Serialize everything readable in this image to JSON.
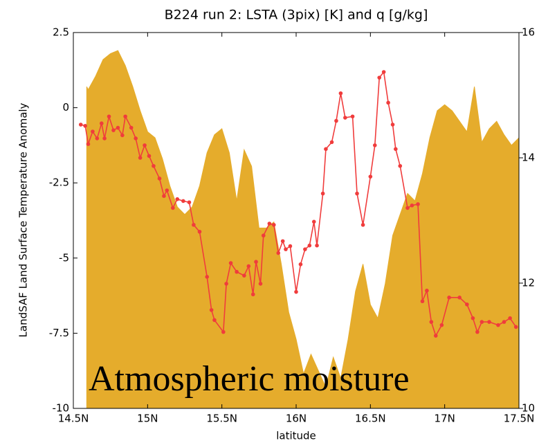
{
  "chart_data": {
    "type": "combo",
    "title": "B224 run 2: LSTA (3pix) [K] and q [g/kg]",
    "xlabel": "latitude",
    "ylabel": "LandSAF Land Surface Temperature Anomaly",
    "annotation": "Atmospheric moisture",
    "xlim": [
      14.5,
      17.5
    ],
    "xticks": [
      {
        "value": 14.5,
        "label": "14.5N"
      },
      {
        "value": 15,
        "label": "15N"
      },
      {
        "value": 15.5,
        "label": "15.5N"
      },
      {
        "value": 16,
        "label": "16N"
      },
      {
        "value": 16.5,
        "label": "16.5N"
      },
      {
        "value": 17,
        "label": "17N"
      },
      {
        "value": 17.5,
        "label": "17.5N"
      }
    ],
    "ylim": [
      -10,
      2.5
    ],
    "yticks": [
      -10,
      -7.5,
      -5,
      -2.5,
      0,
      2.5
    ],
    "y2lim": [
      10,
      16
    ],
    "y2ticks": [
      10,
      12,
      14,
      16
    ],
    "series": [
      {
        "type": "area",
        "color": "#e5ac2c",
        "x": [
          14.59,
          14.6,
          14.65,
          14.7,
          14.75,
          14.8,
          14.85,
          14.9,
          14.95,
          15.0,
          15.05,
          15.1,
          15.15,
          15.2,
          15.25,
          15.3,
          15.35,
          15.4,
          15.45,
          15.5,
          15.55,
          15.6,
          15.65,
          15.7,
          15.75,
          15.8,
          15.85,
          15.9,
          15.95,
          16.0,
          16.05,
          16.1,
          16.15,
          16.2,
          16.25,
          16.3,
          16.35,
          16.4,
          16.45,
          16.5,
          16.55,
          16.6,
          16.65,
          16.7,
          16.75,
          16.8,
          16.85,
          16.9,
          16.95,
          17.0,
          17.05,
          17.1,
          17.15,
          17.2,
          17.25,
          17.3,
          17.35,
          17.4,
          17.45,
          17.5
        ],
        "values": [
          0.7,
          0.6,
          1.05,
          1.6,
          1.8,
          1.9,
          1.4,
          0.7,
          -0.1,
          -0.8,
          -1.0,
          -1.7,
          -2.6,
          -3.3,
          -3.55,
          -3.3,
          -2.6,
          -1.5,
          -0.9,
          -0.7,
          -1.5,
          -3.1,
          -1.4,
          -1.95,
          -4.0,
          -4.0,
          -3.8,
          -5.2,
          -6.8,
          -7.7,
          -8.85,
          -8.2,
          -8.75,
          -9.3,
          -8.3,
          -9.0,
          -7.7,
          -6.1,
          -5.2,
          -6.55,
          -7.0,
          -5.85,
          -4.25,
          -3.55,
          -2.85,
          -3.1,
          -2.2,
          -1.0,
          -0.1,
          0.1,
          -0.1,
          -0.45,
          -0.8,
          0.7,
          -1.15,
          -0.7,
          -0.45,
          -0.9,
          -1.25,
          -1.0
        ]
      },
      {
        "type": "line",
        "color": "#f03c3c",
        "axis": "y2",
        "x": [
          14.55,
          14.58,
          14.6,
          14.63,
          14.66,
          14.69,
          14.71,
          14.74,
          14.77,
          14.8,
          14.83,
          14.85,
          14.89,
          14.92,
          14.95,
          14.98,
          15.01,
          15.04,
          15.08,
          15.11,
          15.13,
          15.17,
          15.2,
          15.24,
          15.28,
          15.31,
          15.35,
          15.4,
          15.43,
          15.45,
          15.51,
          15.53,
          15.56,
          15.6,
          15.65,
          15.68,
          15.71,
          15.73,
          15.76,
          15.78,
          15.82,
          15.85,
          15.88,
          15.91,
          15.93,
          15.96,
          16.0,
          16.03,
          16.06,
          16.09,
          16.12,
          16.14,
          16.18,
          16.2,
          16.24,
          16.27,
          16.3,
          16.33,
          16.38,
          16.41,
          16.45,
          16.5,
          16.53,
          16.56,
          16.59,
          16.62,
          16.65,
          16.67,
          16.7,
          16.75,
          16.78,
          16.82,
          16.85,
          16.88,
          16.91,
          16.94,
          16.98,
          17.03,
          17.1,
          17.15,
          17.19,
          17.22,
          17.25,
          17.3,
          17.36,
          17.4,
          17.44,
          17.48
        ],
        "values": [
          14.53,
          14.51,
          14.22,
          14.42,
          14.31,
          14.55,
          14.31,
          14.66,
          14.44,
          14.48,
          14.36,
          14.66,
          14.48,
          14.31,
          14.0,
          14.2,
          14.03,
          13.87,
          13.67,
          13.39,
          13.48,
          13.2,
          13.34,
          13.31,
          13.29,
          12.93,
          12.82,
          12.1,
          11.57,
          11.41,
          11.22,
          11.99,
          12.32,
          12.18,
          12.12,
          12.27,
          11.82,
          12.34,
          11.99,
          12.76,
          12.95,
          12.93,
          12.48,
          12.67,
          12.54,
          12.59,
          11.86,
          12.3,
          12.54,
          12.6,
          12.98,
          12.6,
          13.43,
          14.14,
          14.25,
          14.59,
          15.03,
          14.64,
          14.66,
          13.43,
          12.93,
          13.7,
          14.2,
          15.28,
          15.37,
          14.88,
          14.53,
          14.14,
          13.87,
          13.2,
          13.24,
          13.26,
          11.71,
          11.88,
          11.38,
          11.16,
          11.33,
          11.77,
          11.77,
          11.66,
          11.44,
          11.22,
          11.38,
          11.38,
          11.33,
          11.38,
          11.44,
          11.3
        ]
      }
    ]
  }
}
